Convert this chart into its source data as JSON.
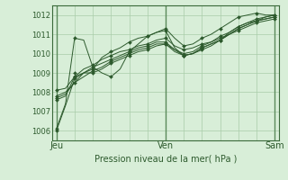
{
  "bg_color": "#cce8cc",
  "plot_bg_color": "#d8eed8",
  "grid_color": "#aaccaa",
  "line_color": "#2d5a2d",
  "marker_color": "#2d5a2d",
  "xlabel": "Pression niveau de la mer( hPa )",
  "xtick_labels": [
    "Jeu",
    "Ven",
    "Sam"
  ],
  "xtick_positions": [
    0,
    48,
    96
  ],
  "ylim": [
    1005.5,
    1012.5
  ],
  "yticks": [
    1006,
    1007,
    1008,
    1009,
    1010,
    1011,
    1012
  ],
  "xlim": [
    -2,
    98
  ],
  "series": [
    {
      "x": [
        0,
        8,
        16,
        24,
        32,
        40,
        48,
        56,
        64,
        72,
        80,
        88,
        96
      ],
      "y": [
        1006.0,
        1008.7,
        1009.2,
        1010.1,
        1010.6,
        1010.9,
        1011.3,
        1010.4,
        1010.8,
        1011.3,
        1011.9,
        1012.1,
        1012.0
      ]
    },
    {
      "x": [
        0,
        8,
        16,
        24,
        32,
        40,
        48,
        56,
        64,
        72,
        80,
        88,
        96
      ],
      "y": [
        1007.8,
        1009.0,
        1009.0,
        1009.5,
        1009.9,
        1010.2,
        1010.5,
        1009.9,
        1010.3,
        1010.7,
        1011.3,
        1011.7,
        1011.9
      ]
    },
    {
      "x": [
        0,
        8,
        16,
        24,
        32,
        40,
        48,
        56,
        64,
        72,
        80,
        88,
        96
      ],
      "y": [
        1007.7,
        1008.5,
        1009.1,
        1009.6,
        1010.0,
        1010.3,
        1010.5,
        1009.9,
        1010.3,
        1010.7,
        1011.2,
        1011.6,
        1011.8
      ]
    },
    {
      "x": [
        0,
        8,
        16,
        24,
        32,
        40,
        48,
        56,
        64,
        72,
        80,
        88,
        96
      ],
      "y": [
        1008.1,
        1008.8,
        1009.4,
        1009.9,
        1010.2,
        1010.5,
        1010.8,
        1010.2,
        1010.5,
        1010.9,
        1011.4,
        1011.7,
        1012.0
      ]
    },
    {
      "x": [
        0,
        8,
        16,
        24,
        32,
        40,
        48,
        56,
        64,
        72,
        80,
        88,
        96
      ],
      "y": [
        1006.1,
        1010.8,
        1009.3,
        1008.8,
        1010.1,
        1010.9,
        1011.2,
        1009.9,
        1010.2,
        1010.7,
        1011.4,
        1011.8,
        1012.0
      ]
    },
    {
      "x": [
        0,
        8,
        16,
        24,
        32,
        40,
        48,
        56,
        64,
        72,
        80,
        88,
        96
      ],
      "y": [
        1007.6,
        1008.8,
        1009.3,
        1009.7,
        1010.1,
        1010.4,
        1010.6,
        1010.0,
        1010.4,
        1010.8,
        1011.3,
        1011.7,
        1011.9
      ]
    }
  ],
  "dense_series": [
    {
      "x": [
        0,
        4,
        8,
        12,
        16,
        20,
        24,
        28,
        32,
        36,
        40,
        44,
        48,
        52,
        56,
        60,
        64,
        68,
        72,
        76,
        80,
        84,
        88,
        92,
        96
      ],
      "y": [
        1006.0,
        1007.3,
        1008.7,
        1009.0,
        1009.2,
        1009.8,
        1010.1,
        1010.3,
        1010.6,
        1010.8,
        1010.9,
        1011.1,
        1011.3,
        1010.8,
        1010.4,
        1010.5,
        1010.8,
        1011.0,
        1011.3,
        1011.6,
        1011.9,
        1012.0,
        1012.1,
        1012.0,
        1012.0
      ]
    },
    {
      "x": [
        0,
        4,
        8,
        12,
        16,
        20,
        24,
        28,
        32,
        36,
        40,
        44,
        48,
        52,
        56,
        60,
        64,
        68,
        72,
        76,
        80,
        84,
        88,
        92,
        96
      ],
      "y": [
        1007.8,
        1008.0,
        1008.5,
        1009.0,
        1009.0,
        1009.2,
        1009.5,
        1009.7,
        1009.9,
        1010.1,
        1010.2,
        1010.4,
        1010.5,
        1010.2,
        1009.9,
        1010.0,
        1010.3,
        1010.5,
        1010.7,
        1011.0,
        1011.3,
        1011.5,
        1011.7,
        1011.8,
        1011.9
      ]
    },
    {
      "x": [
        0,
        4,
        8,
        12,
        16,
        20,
        24,
        28,
        32,
        36,
        40,
        44,
        48,
        52,
        56,
        60,
        64,
        68,
        72,
        76,
        80,
        84,
        88,
        92,
        96
      ],
      "y": [
        1007.7,
        1007.9,
        1008.5,
        1008.8,
        1009.1,
        1009.3,
        1009.6,
        1009.8,
        1010.0,
        1010.2,
        1010.3,
        1010.5,
        1010.5,
        1010.1,
        1009.9,
        1010.0,
        1010.3,
        1010.5,
        1010.7,
        1011.0,
        1011.2,
        1011.4,
        1011.6,
        1011.7,
        1011.8
      ]
    },
    {
      "x": [
        0,
        4,
        8,
        12,
        16,
        20,
        24,
        28,
        32,
        36,
        40,
        44,
        48,
        52,
        56,
        60,
        64,
        68,
        72,
        76,
        80,
        84,
        88,
        92,
        96
      ],
      "y": [
        1008.1,
        1008.2,
        1008.8,
        1009.2,
        1009.4,
        1009.7,
        1009.9,
        1010.1,
        1010.2,
        1010.4,
        1010.5,
        1010.7,
        1010.8,
        1010.4,
        1010.2,
        1010.3,
        1010.5,
        1010.6,
        1010.9,
        1011.1,
        1011.4,
        1011.6,
        1011.7,
        1011.9,
        1012.0
      ]
    },
    {
      "x": [
        0,
        4,
        8,
        12,
        16,
        20,
        24,
        28,
        32,
        36,
        40,
        44,
        48,
        52,
        56,
        60,
        64,
        68,
        72,
        76,
        80,
        84,
        88,
        92,
        96
      ],
      "y": [
        1006.1,
        1007.4,
        1010.8,
        1010.7,
        1009.3,
        1009.0,
        1008.8,
        1009.2,
        1010.1,
        1010.5,
        1010.9,
        1011.1,
        1011.2,
        1010.3,
        1009.9,
        1010.0,
        1010.2,
        1010.4,
        1010.7,
        1011.1,
        1011.4,
        1011.6,
        1011.8,
        1011.9,
        1012.0
      ]
    },
    {
      "x": [
        0,
        4,
        8,
        12,
        16,
        20,
        24,
        28,
        32,
        36,
        40,
        44,
        48,
        52,
        56,
        60,
        64,
        68,
        72,
        76,
        80,
        84,
        88,
        92,
        96
      ],
      "y": [
        1007.6,
        1007.8,
        1008.8,
        1009.0,
        1009.3,
        1009.5,
        1009.7,
        1009.9,
        1010.1,
        1010.3,
        1010.4,
        1010.6,
        1010.6,
        1010.2,
        1010.0,
        1010.1,
        1010.4,
        1010.6,
        1010.8,
        1011.0,
        1011.3,
        1011.5,
        1011.7,
        1011.8,
        1011.9
      ]
    }
  ]
}
